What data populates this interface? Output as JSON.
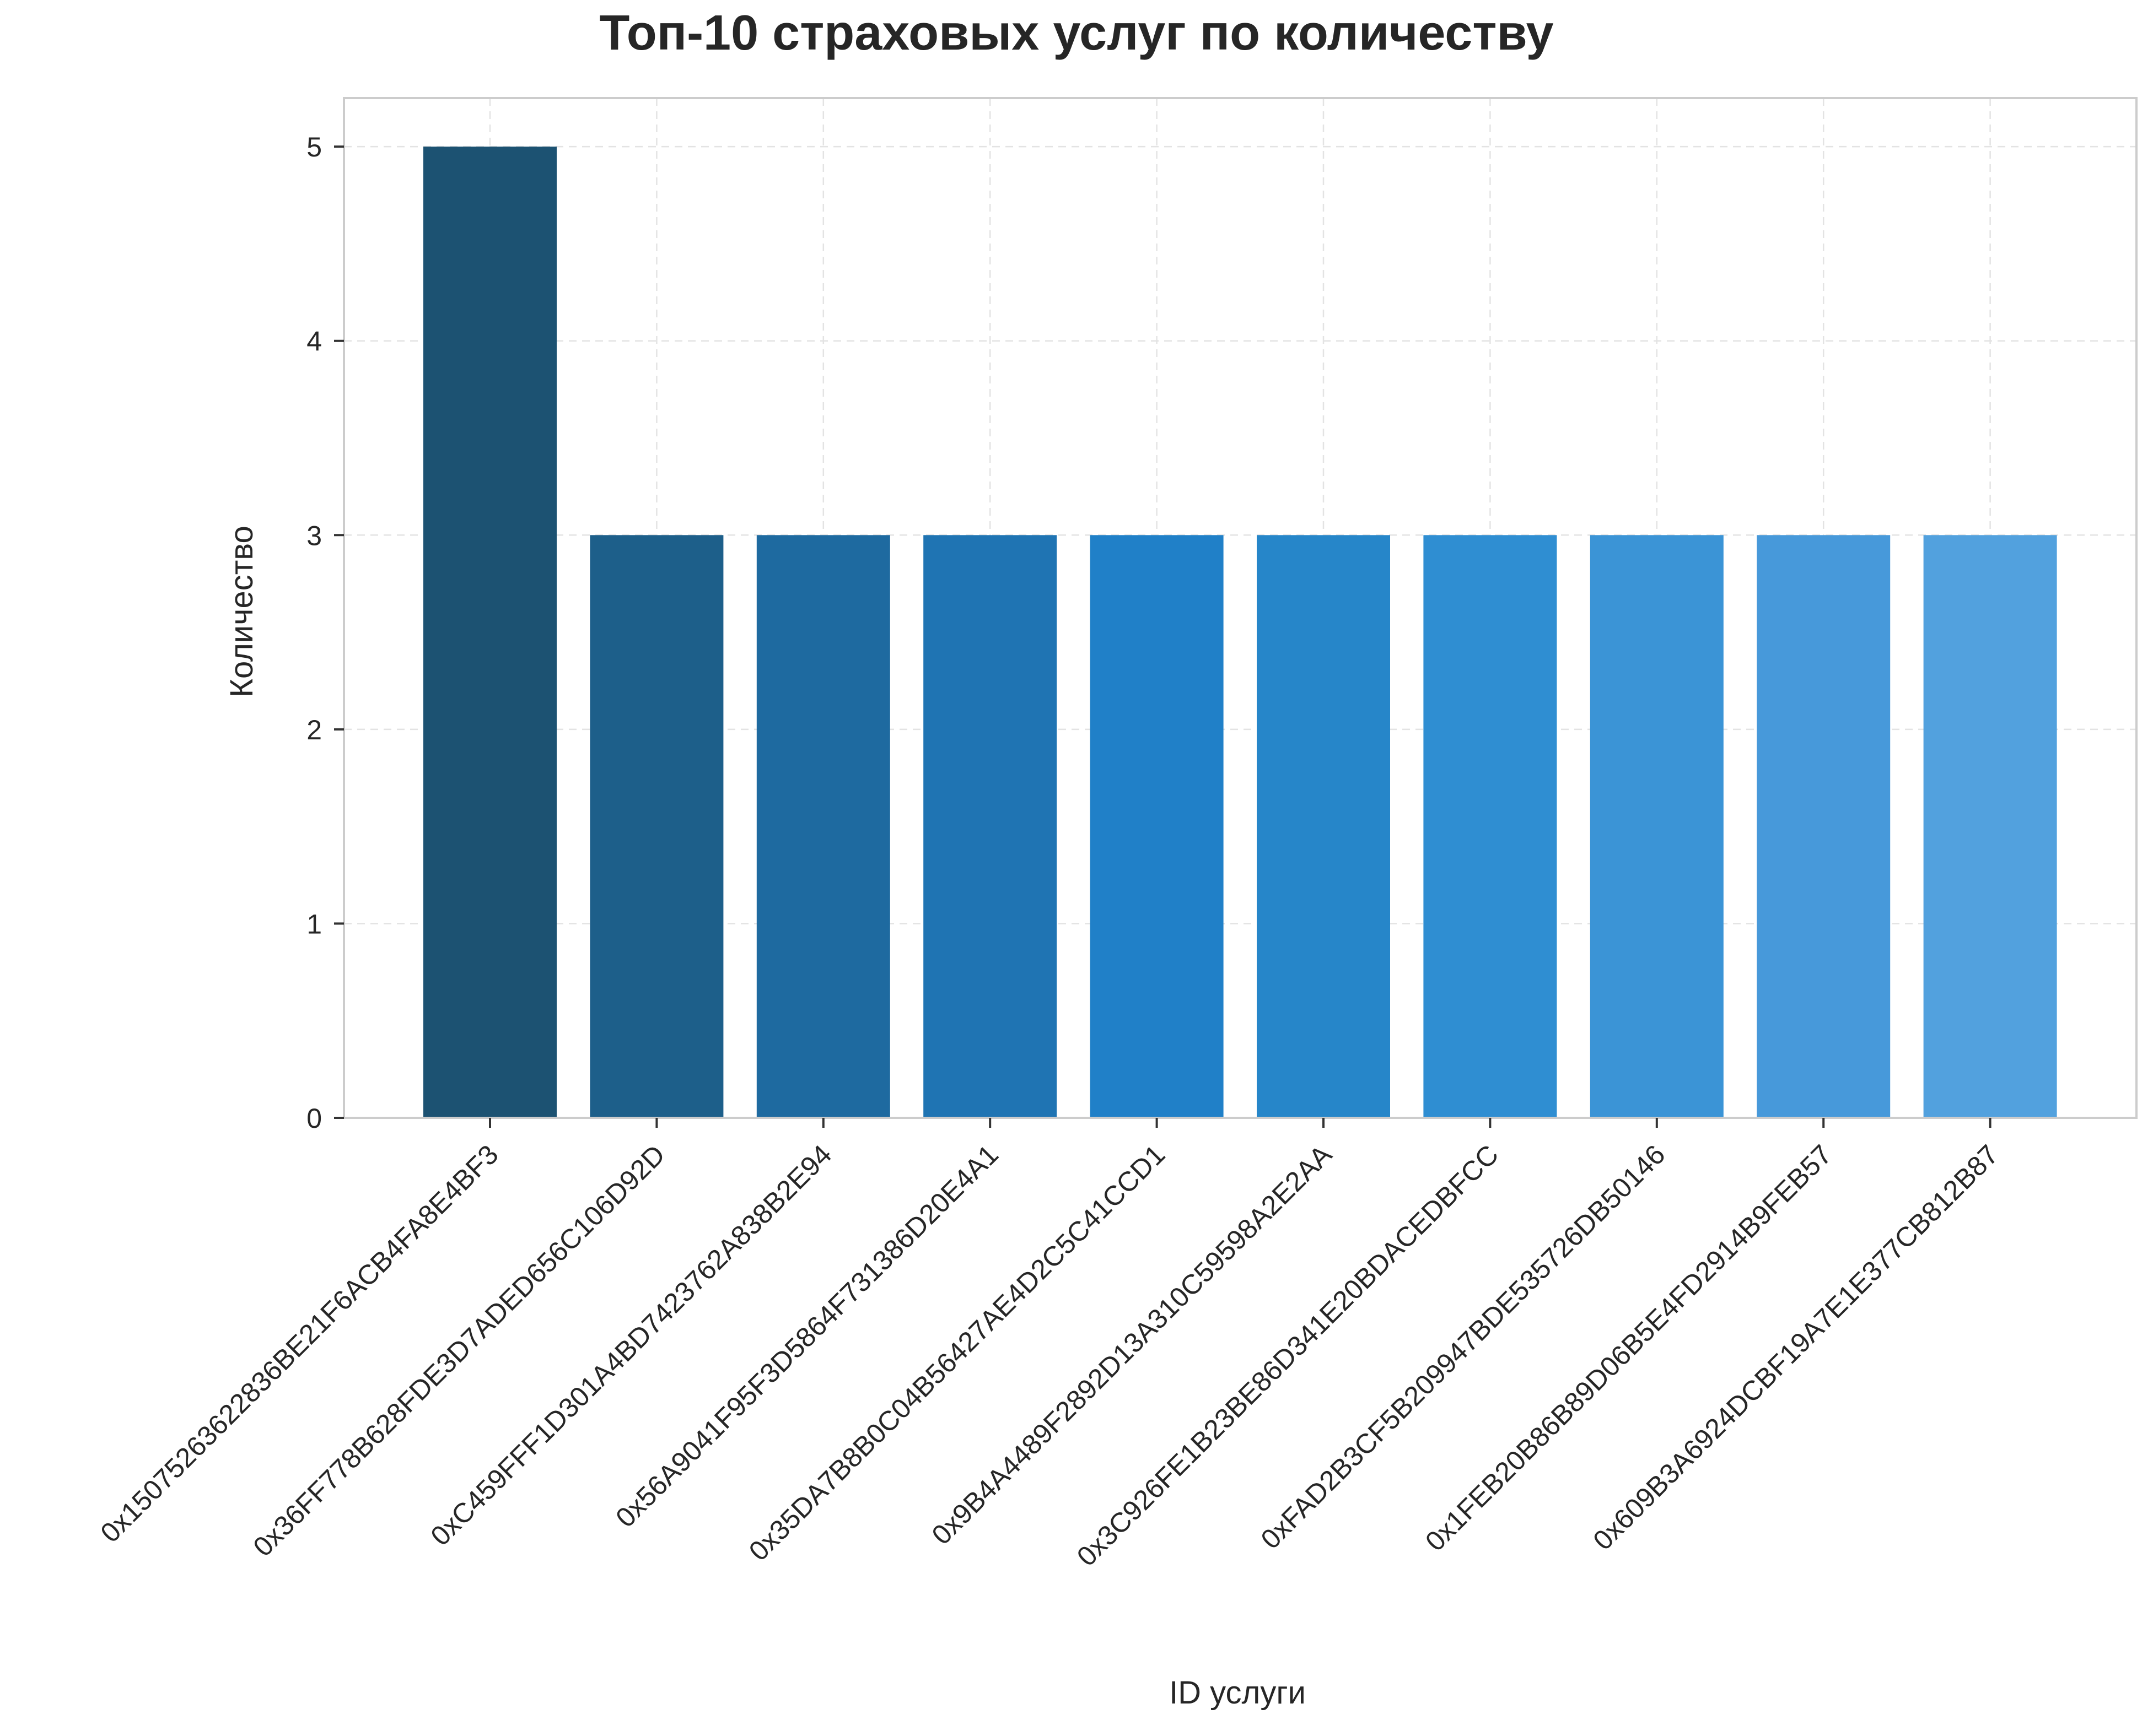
{
  "chart_data": {
    "type": "bar",
    "title": "Топ-10 страховых услуг по количеству",
    "xlabel": "ID услуги",
    "ylabel": "Количество",
    "categories": [
      "0x150752636228​36BE21F6ACB4FA8E4BF3",
      "0x36FF778B628FDE3D7ADED656C106D92D",
      "0xC459FFF1D301A4BD742376 2A838B2E94",
      "0x56A9041F95F3D5864F731386D20E4A1",
      "0x35DA7B8B0C04B56427AE4D2C5C41CCD1",
      "0x9B4A4489F2892D13A310C59598A2E2AA",
      "0x3C926FE1B23BE86D341E20BDACEDBFCC",
      "0xFAD2B3CF5B209947BDE535726DB50146",
      "0x1FEB20B86B89D06B5E4FD2914B9FEB57",
      "0x609B3A6924DCBF19A7E1E377CB812B87"
    ],
    "values": [
      5,
      3,
      3,
      3,
      3,
      3,
      3,
      3,
      3,
      3
    ],
    "colors": [
      "#1c5272",
      "#1d5f8a",
      "#1e6aa0",
      "#1f74b3",
      "#2080c8",
      "#2686c9",
      "#2f8ed2",
      "#3b94d6",
      "#4799da",
      "#52a1de"
    ],
    "ylim": [
      0,
      5.25
    ],
    "yticks": [
      0,
      1,
      2,
      3,
      4,
      5
    ],
    "grid": true
  }
}
